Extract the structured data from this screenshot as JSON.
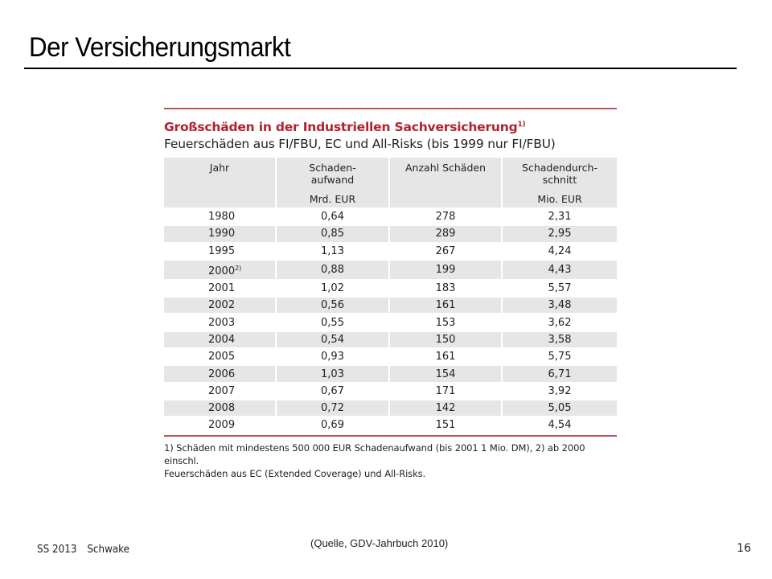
{
  "slide": {
    "title": "Der Versicherungsmarkt",
    "source": "(Quelle, GDV-Jahrbuch 2010)",
    "footer_semester": "SS 2013",
    "footer_author": "Schwake",
    "page_number": "16"
  },
  "figure": {
    "title": "Großschäden in der Industriellen Sachversicherung",
    "title_note": "1)",
    "subtitle": "Feuerschäden aus FI/FBU, EC und All-Risks (bis 1999 nur FI/FBU)",
    "columns": [
      {
        "label": "Jahr",
        "unit": ""
      },
      {
        "label": "Schaden-\naufwand",
        "unit": "Mrd. EUR"
      },
      {
        "label": "Anzahl Schäden",
        "unit": ""
      },
      {
        "label": "Schadendurch-\nschnitt",
        "unit": "Mio. EUR"
      }
    ],
    "rows": [
      {
        "year": "1980",
        "note": "",
        "aufwand": "0,64",
        "anzahl": "278",
        "schnitt": "2,31"
      },
      {
        "year": "1990",
        "note": "",
        "aufwand": "0,85",
        "anzahl": "289",
        "schnitt": "2,95"
      },
      {
        "year": "1995",
        "note": "",
        "aufwand": "1,13",
        "anzahl": "267",
        "schnitt": "4,24"
      },
      {
        "year": "2000",
        "note": "2)",
        "aufwand": "0,88",
        "anzahl": "199",
        "schnitt": "4,43"
      },
      {
        "year": "2001",
        "note": "",
        "aufwand": "1,02",
        "anzahl": "183",
        "schnitt": "5,57"
      },
      {
        "year": "2002",
        "note": "",
        "aufwand": "0,56",
        "anzahl": "161",
        "schnitt": "3,48"
      },
      {
        "year": "2003",
        "note": "",
        "aufwand": "0,55",
        "anzahl": "153",
        "schnitt": "3,62"
      },
      {
        "year": "2004",
        "note": "",
        "aufwand": "0,54",
        "anzahl": "150",
        "schnitt": "3,58"
      },
      {
        "year": "2005",
        "note": "",
        "aufwand": "0,93",
        "anzahl": "161",
        "schnitt": "5,75"
      },
      {
        "year": "2006",
        "note": "",
        "aufwand": "1,03",
        "anzahl": "154",
        "schnitt": "6,71"
      },
      {
        "year": "2007",
        "note": "",
        "aufwand": "0,67",
        "anzahl": "171",
        "schnitt": "3,92"
      },
      {
        "year": "2008",
        "note": "",
        "aufwand": "0,72",
        "anzahl": "142",
        "schnitt": "5,05"
      },
      {
        "year": "2009",
        "note": "",
        "aufwand": "0,69",
        "anzahl": "151",
        "schnitt": "4,54"
      }
    ],
    "footnote_line1": "1) Schäden mit mindestens 500 000 EUR Schadenaufwand (bis 2001 1 Mio. DM), 2) ab 2000 einschl.",
    "footnote_line2": "Feuerschäden aus EC (Extended Coverage) und All-Risks."
  },
  "colors": {
    "accent_red": "#b3202e",
    "rule_red": "#c0505a",
    "row_shade": "#e6e6e6"
  }
}
